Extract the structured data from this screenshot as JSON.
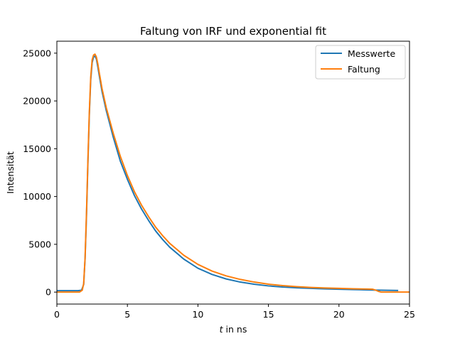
{
  "chart_data": {
    "type": "line",
    "title": "Faltung von IRF und exponential fit",
    "xlabel_var": "t",
    "xlabel_rest": " in ns",
    "ylabel": "Intensität",
    "xlim": [
      0,
      25
    ],
    "ylim": [
      -1250,
      26250
    ],
    "xticks": [
      0,
      5,
      10,
      15,
      20,
      25
    ],
    "yticks": [
      0,
      5000,
      10000,
      15000,
      20000,
      25000
    ],
    "grid": false,
    "legend_position": "top-right",
    "series": [
      {
        "name": "Messwerte",
        "color": "#1f77b4",
        "x": [
          0,
          1.5,
          1.75,
          1.9,
          2.0,
          2.1,
          2.2,
          2.3,
          2.4,
          2.5,
          2.6,
          2.7,
          2.8,
          2.9,
          3.0,
          3.2,
          3.5,
          4.0,
          4.5,
          5.0,
          5.5,
          6.0,
          6.5,
          7.0,
          7.5,
          8.0,
          9.0,
          10.0,
          11.0,
          12.0,
          13.0,
          14.0,
          15.0,
          16.0,
          17.0,
          18.0,
          19.0,
          20.0,
          21.0,
          22.0,
          23.0,
          24.2
        ],
        "y": [
          150,
          150,
          200,
          800,
          3500,
          8000,
          13500,
          18500,
          22200,
          24000,
          24600,
          24700,
          24400,
          23600,
          22700,
          21000,
          19000,
          16200,
          13700,
          11800,
          10100,
          8700,
          7500,
          6400,
          5500,
          4700,
          3450,
          2500,
          1850,
          1380,
          1050,
          820,
          650,
          530,
          450,
          390,
          340,
          300,
          260,
          230,
          200,
          170
        ]
      },
      {
        "name": "Faltung",
        "color": "#ff7f0e",
        "x": [
          0,
          1.6,
          1.8,
          1.9,
          2.0,
          2.1,
          2.2,
          2.3,
          2.4,
          2.5,
          2.6,
          2.7,
          2.8,
          2.9,
          3.0,
          3.2,
          3.5,
          4.0,
          4.5,
          5.0,
          5.5,
          6.0,
          6.5,
          7.0,
          7.5,
          8.0,
          9.0,
          10.0,
          11.0,
          12.0,
          13.0,
          14.0,
          15.0,
          16.0,
          17.0,
          18.0,
          19.0,
          20.0,
          21.0,
          22.0,
          22.4,
          22.6,
          22.8,
          23.0,
          25.0
        ],
        "y": [
          0,
          0,
          200,
          900,
          3600,
          8300,
          13800,
          18800,
          22500,
          24300,
          24800,
          24900,
          24600,
          23900,
          23000,
          21300,
          19300,
          16600,
          14200,
          12200,
          10500,
          9100,
          7900,
          6800,
          5900,
          5100,
          3850,
          2900,
          2200,
          1700,
          1330,
          1050,
          830,
          680,
          570,
          490,
          430,
          390,
          350,
          320,
          300,
          200,
          80,
          0,
          0
        ]
      }
    ]
  }
}
